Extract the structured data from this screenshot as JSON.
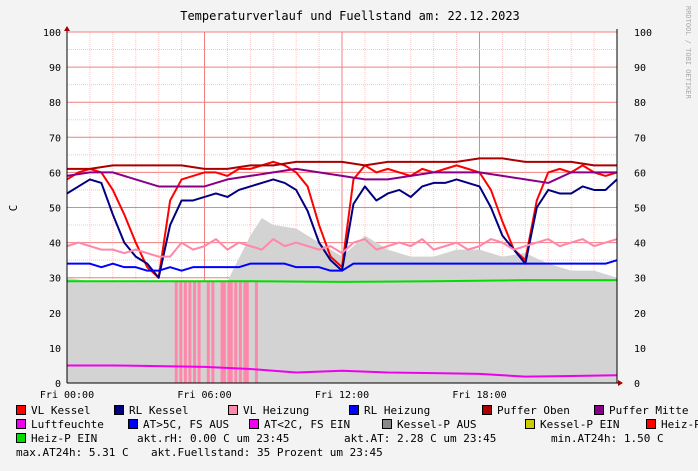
{
  "title": "Temperaturverlauf und Fuellstand am: 22.12.2023",
  "side_text": "RRDTOOL / TOBI OETIKER",
  "chart_data": {
    "type": "line",
    "ylabel": "C",
    "ylim": [
      0,
      100
    ],
    "yticks": [
      "0",
      "10",
      "20",
      "30",
      "40",
      "50",
      "60",
      "70",
      "80",
      "90",
      "100"
    ],
    "xticks": [
      {
        "label": "Fri 00:00",
        "hour": 0
      },
      {
        "label": "Fri 06:00",
        "hour": 6
      },
      {
        "label": "Fri 12:00",
        "hour": 12
      },
      {
        "label": "Fri 18:00",
        "hour": 18
      }
    ],
    "x_range_hours": [
      0,
      24
    ],
    "grid": true,
    "series": [
      {
        "name": "VL Kessel",
        "color": "#ff0000",
        "x": [
          0,
          0.5,
          1,
          1.5,
          2,
          2.5,
          3,
          3.5,
          4,
          4.5,
          5,
          5.5,
          6,
          6.5,
          7,
          7.5,
          8,
          8.5,
          9,
          9.5,
          10,
          10.5,
          11,
          11.5,
          12,
          12.5,
          13,
          13.5,
          14,
          14.5,
          15,
          15.5,
          16,
          16.5,
          17,
          17.5,
          18,
          18.5,
          19,
          19.5,
          20,
          20.5,
          21,
          21.5,
          22,
          22.5,
          23,
          23.5,
          24
        ],
        "y": [
          58,
          60,
          61,
          60,
          55,
          48,
          40,
          33,
          30,
          52,
          58,
          59,
          60,
          60,
          59,
          61,
          61,
          62,
          63,
          62,
          60,
          56,
          45,
          36,
          33,
          58,
          62,
          60,
          61,
          60,
          59,
          61,
          60,
          61,
          62,
          61,
          60,
          55,
          46,
          38,
          35,
          52,
          60,
          61,
          60,
          62,
          60,
          59,
          60
        ]
      },
      {
        "name": "RL Kessel",
        "color": "#000080",
        "x": [
          0,
          0.5,
          1,
          1.5,
          2,
          2.5,
          3,
          3.5,
          4,
          4.5,
          5,
          5.5,
          6,
          6.5,
          7,
          7.5,
          8,
          8.5,
          9,
          9.5,
          10,
          10.5,
          11,
          11.5,
          12,
          12.5,
          13,
          13.5,
          14,
          14.5,
          15,
          15.5,
          16,
          16.5,
          17,
          17.5,
          18,
          18.5,
          19,
          19.5,
          20,
          20.5,
          21,
          21.5,
          22,
          22.5,
          23,
          23.5,
          24
        ],
        "y": [
          54,
          56,
          58,
          57,
          48,
          40,
          36,
          34,
          30,
          45,
          52,
          52,
          53,
          54,
          53,
          55,
          56,
          57,
          58,
          57,
          55,
          49,
          40,
          35,
          32,
          51,
          56,
          52,
          54,
          55,
          53,
          56,
          57,
          57,
          58,
          57,
          56,
          50,
          42,
          38,
          34,
          50,
          55,
          54,
          54,
          56,
          55,
          55,
          58
        ]
      },
      {
        "name": "VL Heizung",
        "color": "#ff88aa",
        "x": [
          0,
          0.5,
          1,
          1.5,
          2,
          2.5,
          3,
          3.5,
          4,
          4.5,
          5,
          5.5,
          6,
          6.5,
          7,
          7.5,
          8,
          8.5,
          9,
          9.5,
          10,
          10.5,
          11,
          11.5,
          12,
          12.5,
          13,
          13.5,
          14,
          14.5,
          15,
          15.5,
          16,
          16.5,
          17,
          17.5,
          18,
          18.5,
          19,
          19.5,
          20,
          20.5,
          21,
          21.5,
          22,
          22.5,
          23,
          23.5,
          24
        ],
        "y": [
          39,
          40,
          39,
          38,
          38,
          37,
          38,
          37,
          36,
          36,
          40,
          38,
          39,
          41,
          38,
          40,
          39,
          38,
          41,
          39,
          40,
          39,
          38,
          39,
          37,
          40,
          41,
          38,
          39,
          40,
          39,
          41,
          38,
          39,
          40,
          38,
          39,
          41,
          40,
          38,
          39,
          40,
          41,
          39,
          40,
          41,
          39,
          40,
          41
        ]
      },
      {
        "name": "RL Heizung",
        "color": "#0000ff",
        "x": [
          0,
          0.5,
          1,
          1.5,
          2,
          2.5,
          3,
          3.5,
          4,
          4.5,
          5,
          5.5,
          6,
          6.5,
          7,
          7.5,
          8,
          8.5,
          9,
          9.5,
          10,
          10.5,
          11,
          11.5,
          12,
          12.5,
          13,
          13.5,
          14,
          14.5,
          15,
          15.5,
          16,
          16.5,
          17,
          17.5,
          18,
          18.5,
          19,
          19.5,
          20,
          20.5,
          21,
          21.5,
          22,
          22.5,
          23,
          23.5,
          24
        ],
        "y": [
          34,
          34,
          34,
          33,
          34,
          33,
          33,
          32,
          32,
          33,
          32,
          33,
          33,
          33,
          33,
          33,
          34,
          34,
          34,
          34,
          33,
          33,
          33,
          32,
          32,
          34,
          34,
          34,
          34,
          34,
          34,
          34,
          34,
          34,
          34,
          34,
          34,
          34,
          34,
          34,
          34,
          34,
          34,
          34,
          34,
          34,
          34,
          34,
          35
        ]
      },
      {
        "name": "Puffer Oben",
        "color": "#aa0000",
        "x": [
          0,
          1,
          2,
          3,
          4,
          5,
          6,
          7,
          8,
          9,
          10,
          11,
          12,
          13,
          14,
          15,
          16,
          17,
          18,
          19,
          20,
          21,
          22,
          23,
          24
        ],
        "y": [
          61,
          61,
          62,
          62,
          62,
          62,
          61,
          61,
          62,
          62,
          63,
          63,
          63,
          62,
          63,
          63,
          63,
          63,
          64,
          64,
          63,
          63,
          63,
          62,
          62
        ]
      },
      {
        "name": "Puffer Mitte",
        "color": "#880088",
        "x": [
          0,
          1,
          2,
          3,
          4,
          5,
          6,
          7,
          8,
          9,
          10,
          11,
          12,
          13,
          14,
          15,
          16,
          17,
          18,
          19,
          20,
          21,
          22,
          23,
          24
        ],
        "y": [
          59,
          60,
          60,
          58,
          56,
          56,
          56,
          58,
          59,
          60,
          61,
          60,
          59,
          58,
          58,
          59,
          60,
          60,
          60,
          59,
          58,
          57,
          60,
          60,
          60
        ]
      },
      {
        "name": "Luftfeuchte",
        "color": "#ee00ee",
        "x": [
          0,
          2,
          4,
          6,
          8,
          10,
          12,
          14,
          16,
          18,
          20,
          22,
          24
        ],
        "y": [
          5,
          5,
          4.8,
          4.6,
          4,
          3,
          3.5,
          3,
          2.8,
          2.6,
          1.8,
          2,
          2.2
        ]
      },
      {
        "name": "Heiz-P EIN",
        "color": "#00dd00",
        "x": [
          0,
          4,
          8,
          12,
          16,
          20,
          24
        ],
        "y": [
          29,
          29,
          29,
          28.8,
          29,
          29.3,
          29.3
        ]
      }
    ],
    "area": {
      "name": "Kessel-P AUS",
      "color": "#bbbbbb",
      "x": [
        0,
        1,
        2,
        3,
        4,
        5,
        6,
        7,
        8,
        8.5,
        9,
        10,
        11,
        12,
        13,
        14,
        15,
        16,
        17,
        18,
        19,
        20,
        21,
        22,
        23,
        24
      ],
      "y": [
        30,
        29,
        29,
        29,
        29,
        29,
        29,
        29,
        42,
        47,
        45,
        44,
        40,
        36,
        42,
        38,
        36,
        36,
        38,
        38,
        36,
        37,
        34,
        32,
        32,
        30
      ]
    },
    "pink_spikes": {
      "name": "VL Heizung",
      "color": "#ff88aa",
      "x": [
        4.7,
        4.9,
        5.1,
        5.3,
        5.5,
        5.7,
        6.1,
        6.3,
        6.7,
        6.8,
        7.0,
        7.1,
        7.3,
        7.5,
        7.7,
        7.8,
        8.2
      ]
    },
    "legend": [
      {
        "label": "VL Kessel",
        "color": "#ff0000"
      },
      {
        "label": "RL Kessel",
        "color": "#000080"
      },
      {
        "label": "VL Heizung",
        "color": "#ff88aa"
      },
      {
        "label": "RL Heizung",
        "color": "#0000ff"
      },
      {
        "label": "Puffer Oben",
        "color": "#aa0000"
      },
      {
        "label": "Puffer Mitte",
        "color": "#880088"
      },
      {
        "label": "Luftfeuchte",
        "color": "#ee00ee"
      },
      {
        "label": "AT>5C, FS AUS",
        "color": "#0000ff"
      },
      {
        "label": "AT<2C, FS EIN",
        "color": "#ee00ee"
      },
      {
        "label": "Kessel-P AUS",
        "color": "#888888"
      },
      {
        "label": "Kessel-P EIN",
        "color": "#cccc00"
      },
      {
        "label": "Heiz-P AUS",
        "color": "#ff0000"
      },
      {
        "label": "Heiz-P EIN",
        "color": "#00dd00"
      }
    ],
    "stats": {
      "akt_rh": "akt.rH: 0.00 C um 23:45",
      "akt_at": "akt.AT: 2.28 C um 23:45",
      "min_at24h": "min.AT24h: 1.50 C",
      "max_at24h": "max.AT24h: 5.31 C",
      "akt_fuellstand": "akt.Fuellstand:   35 Prozent um 23:45"
    }
  }
}
